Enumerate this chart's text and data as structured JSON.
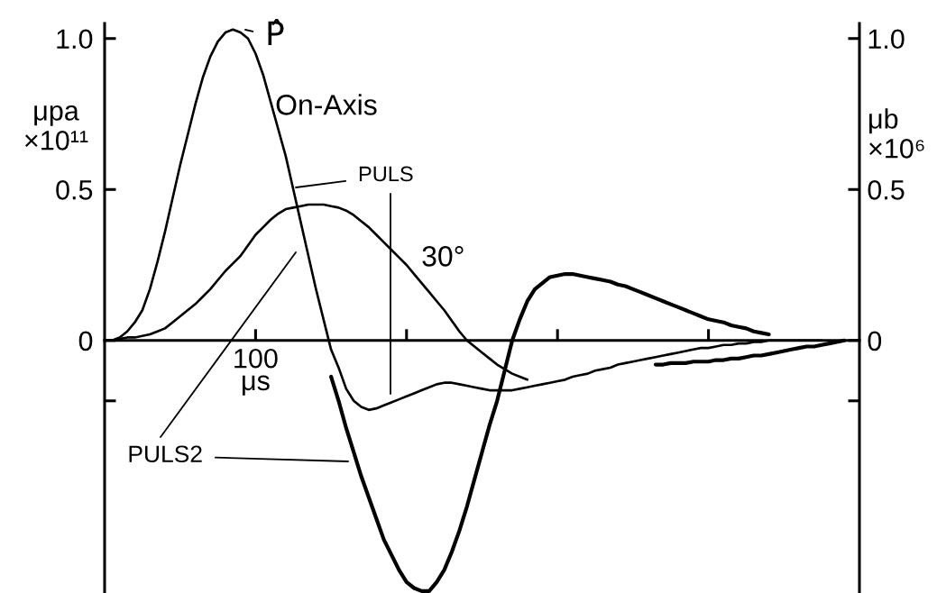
{
  "chart_data": {
    "type": "line",
    "xlabel": "μs",
    "ylabel": "μpa\n×10¹¹",
    "y2label": "μb\n×10⁶",
    "categories": [
      null,
      null,
      null,
      null,
      null,
      null,
      null,
      null,
      null,
      null,
      null,
      null,
      null,
      null,
      null,
      null,
      null,
      null,
      null,
      null,
      "100",
      null,
      null,
      null,
      null,
      null,
      null,
      null,
      null,
      null,
      null,
      null,
      null,
      null,
      null,
      null,
      null,
      null,
      null,
      null,
      null,
      null,
      null,
      null,
      null,
      null,
      null,
      null,
      null,
      null,
      null,
      null,
      null,
      null,
      null,
      null,
      null,
      null,
      null,
      null,
      null,
      null,
      null,
      null,
      null,
      null,
      null,
      null,
      null,
      null,
      null,
      null,
      null,
      null,
      null,
      null,
      null,
      null,
      null,
      null,
      null,
      null,
      null,
      null,
      null,
      null,
      null,
      null,
      null,
      null,
      null,
      null,
      null,
      null,
      null,
      null,
      null,
      null,
      null,
      null,
      null
    ],
    "ylim": [
      -0.84,
      1.05
    ],
    "yticks": [
      {
        "value": -0.2,
        "label": null
      },
      {
        "value": 0,
        "label": "0"
      },
      0.5,
      {
        "value": 1,
        "label": "1.0"
      }
    ],
    "y2lim": [
      -0.84,
      1.05
    ],
    "y2ticks": [
      {
        "value": -0.2,
        "label": null
      },
      {
        "value": 0,
        "label": "0"
      },
      0.5,
      {
        "value": 1,
        "label": "1.0"
      }
    ],
    "series": [
      {
        "name": "On-Axis",
        "color": "#000000",
        "values": [
          0,
          0,
          0.01,
          0.03,
          0.06,
          0.1,
          0.17,
          0.26,
          0.36,
          0.47,
          0.58,
          0.68,
          0.78,
          0.87,
          0.94,
          0.99,
          1.02,
          1.03,
          1.02,
          1.0,
          0.95,
          0.88,
          0.79,
          0.7,
          0.61,
          0.5,
          0.39,
          0.28,
          0.17,
          0.07,
          -0.03,
          -0.09,
          -0.16,
          -0.2,
          -0.22,
          -0.23,
          -0.225,
          -0.215,
          -0.205,
          -0.195,
          -0.185,
          -0.175,
          -0.165,
          -0.155,
          -0.145,
          -0.14,
          -0.14,
          -0.145,
          -0.15,
          -0.155,
          -0.16,
          -0.165,
          -0.165,
          -0.165,
          -0.165,
          -0.16,
          -0.155,
          -0.15,
          -0.145,
          -0.14,
          -0.135,
          -0.13,
          -0.12,
          -0.115,
          -0.11,
          -0.1,
          -0.095,
          -0.09,
          -0.08,
          -0.075,
          -0.07,
          -0.065,
          -0.06,
          -0.055,
          -0.05,
          -0.045,
          -0.04,
          -0.035,
          -0.03,
          -0.025,
          -0.025,
          -0.02,
          -0.015,
          -0.015,
          -0.01,
          -0.01,
          -0.005,
          -0.005,
          0,
          0,
          0,
          0,
          0,
          0,
          0,
          0,
          null,
          null,
          null,
          null,
          null
        ]
      },
      {
        "name": "30°",
        "color": "#000000",
        "values": [
          0,
          0,
          0.005,
          0.01,
          0.01,
          0.015,
          0.02,
          0.03,
          0.04,
          0.06,
          0.08,
          0.1,
          0.12,
          0.145,
          0.17,
          0.2,
          0.23,
          0.255,
          0.28,
          0.315,
          0.35,
          0.375,
          0.4,
          0.42,
          0.435,
          0.44,
          0.445,
          0.45,
          0.45,
          0.45,
          0.445,
          0.44,
          0.43,
          0.415,
          0.395,
          0.375,
          0.35,
          0.325,
          0.3,
          0.275,
          0.25,
          0.22,
          0.19,
          0.16,
          0.13,
          0.1,
          0.065,
          0.03,
          0,
          -0.02,
          -0.04,
          -0.06,
          -0.08,
          -0.095,
          -0.11,
          -0.12,
          -0.13,
          null,
          null,
          null,
          null,
          null,
          null,
          null,
          null,
          null,
          null,
          null,
          null,
          null,
          null,
          null,
          null,
          null,
          null,
          null,
          null,
          null,
          null,
          null,
          null,
          null,
          null,
          null,
          null,
          null,
          null,
          null,
          null,
          null,
          null,
          null,
          null,
          null,
          null,
          null,
          null,
          null,
          null,
          null,
          null
        ]
      },
      {
        "color": "#000000",
        "values": [
          null,
          null,
          null,
          null,
          null,
          null,
          null,
          null,
          null,
          null,
          null,
          null,
          null,
          null,
          null,
          null,
          null,
          null,
          null,
          null,
          null,
          null,
          null,
          null,
          null,
          null,
          null,
          null,
          null,
          null,
          -0.12,
          -0.2,
          -0.29,
          -0.37,
          -0.45,
          -0.52,
          -0.59,
          -0.66,
          -0.71,
          -0.76,
          -0.8,
          -0.82,
          -0.83,
          -0.83,
          -0.8,
          -0.76,
          -0.7,
          -0.63,
          -0.55,
          -0.46,
          -0.37,
          -0.28,
          -0.2,
          -0.1,
          0,
          0.07,
          0.13,
          0.17,
          0.19,
          0.21,
          0.215,
          0.22,
          0.22,
          0.215,
          0.21,
          0.205,
          0.2,
          0.195,
          0.185,
          0.18,
          0.17,
          0.16,
          0.15,
          0.14,
          0.13,
          0.12,
          0.11,
          0.1,
          0.09,
          0.08,
          0.07,
          0.065,
          0.06,
          0.05,
          0.045,
          0.04,
          0.03,
          0.025,
          0.02,
          null,
          null,
          null,
          null,
          null,
          null,
          null,
          null,
          null,
          null,
          null,
          null
        ]
      },
      {
        "color": "#000000",
        "values": [
          null,
          null,
          null,
          null,
          null,
          null,
          null,
          null,
          null,
          null,
          null,
          null,
          null,
          null,
          null,
          null,
          null,
          null,
          null,
          null,
          null,
          null,
          null,
          null,
          null,
          null,
          null,
          null,
          null,
          null,
          null,
          null,
          null,
          null,
          null,
          null,
          null,
          null,
          null,
          null,
          null,
          null,
          null,
          null,
          null,
          null,
          null,
          null,
          null,
          null,
          null,
          null,
          null,
          null,
          null,
          null,
          null,
          null,
          null,
          null,
          null,
          null,
          null,
          null,
          null,
          null,
          null,
          null,
          null,
          null,
          null,
          null,
          null,
          -0.08,
          -0.08,
          -0.075,
          -0.075,
          -0.075,
          -0.07,
          -0.07,
          -0.07,
          -0.065,
          -0.065,
          -0.06,
          -0.06,
          -0.055,
          -0.05,
          -0.05,
          -0.045,
          -0.04,
          -0.035,
          -0.03,
          -0.025,
          -0.02,
          -0.02,
          -0.015,
          -0.01,
          -0.005,
          0,
          null,
          null
        ]
      }
    ],
    "annotations": [
      "P̂",
      "PULS",
      "PULS2"
    ]
  }
}
